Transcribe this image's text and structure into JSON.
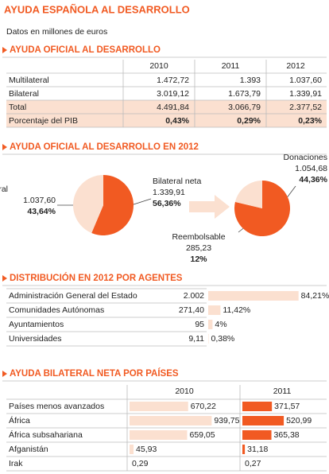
{
  "title": "AYUDA ESPAÑOLA AL DESARROLLO",
  "subtitle": "Datos en millones de euros",
  "section1": {
    "title": "AYUDA OFICIAL AL DESARROLLO",
    "columns": [
      "2010",
      "2011",
      "2012"
    ],
    "rows": [
      {
        "label": "Multilateral",
        "cells": [
          "1.472,72",
          "1.393",
          "1.037,60"
        ]
      },
      {
        "label": "Bilateral",
        "cells": [
          "3.019,12",
          "1.673,79",
          "1.339,91"
        ]
      },
      {
        "label": "Total",
        "cells": [
          "4.491,84",
          "3.066,79",
          "2.377,52"
        ]
      },
      {
        "label": "Porcentaje del PIB",
        "cells": [
          "0,43%",
          "0,29%",
          "0,23%"
        ]
      }
    ]
  },
  "section2": {
    "title": "AYUDA OFICIAL AL DESARROLLO EN 2012",
    "pies": [
      {
        "type": "pie",
        "labels": [
          "Multilateral",
          "Bilateral neta"
        ],
        "values": [
          1037.6,
          1339.91
        ],
        "value_labels": [
          "1.037,60",
          "1.339,91"
        ],
        "shares": [
          "43,64%",
          "56,36%"
        ],
        "colors": [
          "#fbe0d0",
          "#f15a22"
        ]
      },
      {
        "type": "pie",
        "labels": [
          "Donaciones",
          "Reembolsable"
        ],
        "values": [
          1054.68,
          285.23
        ],
        "value_labels": [
          "1.054,68",
          "285,23"
        ],
        "shares": [
          "44,36%",
          "12%"
        ],
        "colors": [
          "#f15a22",
          "#fbe0d0"
        ]
      }
    ]
  },
  "section3": {
    "title": "DISTRIBUCIÓN EN 2012 POR AGENTES",
    "type": "bar",
    "categories": [
      "Administración General del Estado",
      "Comunidades Autónomas",
      "Ayuntamientos",
      "Universidades"
    ],
    "amounts": [
      "2.002",
      "271,40",
      "95",
      "9,11"
    ],
    "values": [
      84.21,
      11.42,
      4,
      0.38
    ],
    "value_labels": [
      "84,21%",
      "11,42%",
      "4%",
      "0,38%"
    ],
    "color": "#fbe0d0"
  },
  "section4": {
    "title": "AYUDA BILATERAL NETA POR PAÍSES",
    "type": "bar",
    "categories": [
      "Países menos avanzados",
      "África",
      "África subsahariana",
      "Afganistán",
      "Irak"
    ],
    "series": [
      {
        "name": "2010",
        "color": "#fbe0d0",
        "values": [
          670.22,
          939.75,
          659.05,
          45.93,
          0.29
        ],
        "value_labels": [
          "670,22",
          "939,75",
          "659,05",
          "45,93",
          "0,29"
        ]
      },
      {
        "name": "2011",
        "color": "#f15a22",
        "values": [
          371.57,
          520.99,
          365.38,
          31.18,
          0.27
        ],
        "value_labels": [
          "371,57",
          "520,99",
          "365,38",
          "31,18",
          "0,27"
        ]
      }
    ]
  }
}
